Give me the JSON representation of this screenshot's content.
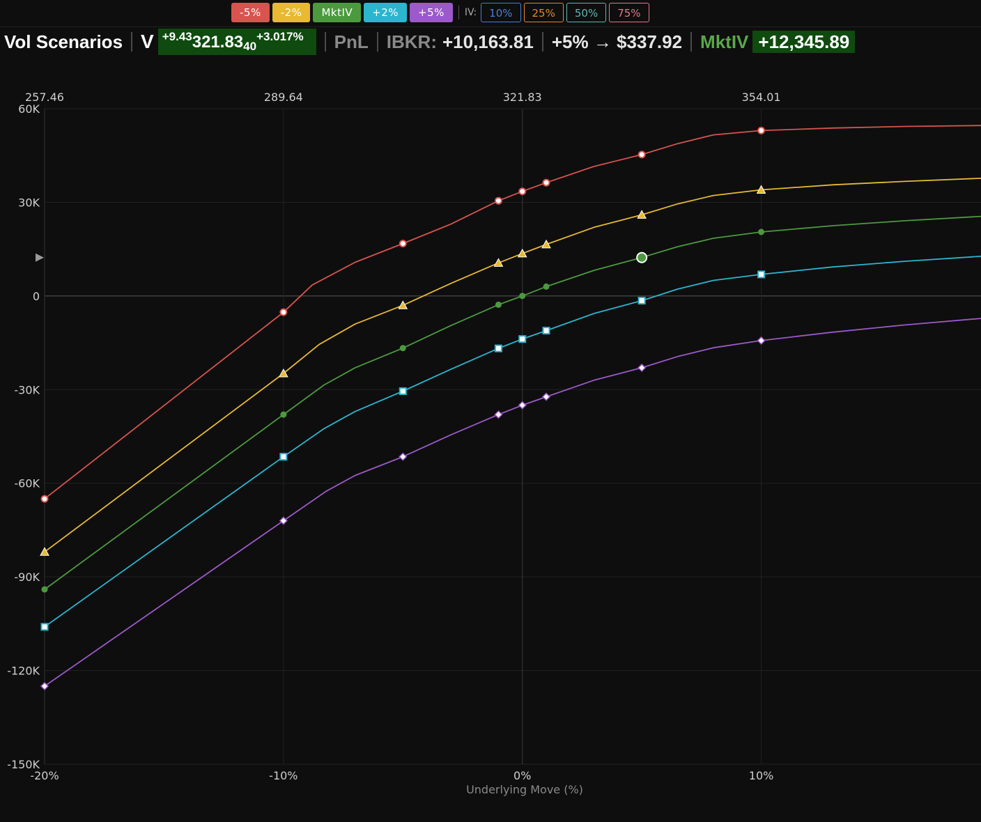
{
  "legend": {
    "buttons": [
      {
        "label": "-5%",
        "color": "#d9534f"
      },
      {
        "label": "-2%",
        "color": "#e8b931"
      },
      {
        "label": "MktIV",
        "color": "#4c9a3e"
      },
      {
        "label": "+2%",
        "color": "#2bb5cf"
      },
      {
        "label": "+5%",
        "color": "#9b59c9"
      }
    ],
    "iv_label": "IV:",
    "iv_buttons": [
      {
        "label": "10%",
        "color": "#4a7fd4"
      },
      {
        "label": "25%",
        "color": "#e08a2e"
      },
      {
        "label": "50%",
        "color": "#5fb8b0"
      },
      {
        "label": "75%",
        "color": "#e07a8a"
      }
    ]
  },
  "header": {
    "title": "Vol Scenarios",
    "ticker": "V",
    "change_abs": "+9.43",
    "price_main": "321.83",
    "price_sub": "40",
    "change_pct": "+3.017%",
    "pnl_label": "PnL",
    "ibkr_label": "IBKR:",
    "ibkr_value": "+10,163.81",
    "scenario_text": "+5% → $337.92",
    "mktiv_label": "MktIV",
    "mktiv_value": "+12,345.89"
  },
  "chart_data": {
    "type": "line",
    "xlabel": "Underlying Move (%)",
    "xlim": [
      -20,
      19.2
    ],
    "ylim": [
      -150000,
      60000
    ],
    "x_ticks": [
      -20,
      -10,
      0,
      10
    ],
    "x_tick_labels": [
      "-20%",
      "-10%",
      "0%",
      "10%"
    ],
    "top_ticks": [
      -20,
      -10,
      0,
      10
    ],
    "top_tick_labels": [
      "257.46",
      "289.64",
      "321.83",
      "354.01"
    ],
    "y_ticks": [
      60000,
      30000,
      0,
      -30000,
      -60000,
      -90000,
      -120000,
      -150000
    ],
    "y_tick_labels": [
      "60K",
      "30K",
      "0",
      "-30K",
      "-60K",
      "-90K",
      "-120K",
      "-150K"
    ],
    "grid": true,
    "current_marker": {
      "x": 5,
      "y": 12300,
      "series": "MktIV"
    },
    "series": [
      {
        "name": "-5%",
        "color": "#d9534f",
        "marker": "circle",
        "points": [
          [
            -20,
            -65000
          ],
          [
            -10,
            -5200
          ],
          [
            -5,
            16800
          ],
          [
            -1,
            30500
          ],
          [
            0,
            33500
          ],
          [
            1,
            36300
          ],
          [
            5,
            45300
          ],
          [
            10,
            53000
          ]
        ],
        "curve": [
          [
            -20,
            -65000
          ],
          [
            -10,
            -5200
          ],
          [
            -8.8,
            3500
          ],
          [
            -7,
            10800
          ],
          [
            -5,
            16800
          ],
          [
            -3,
            23000
          ],
          [
            -1,
            30500
          ],
          [
            0,
            33500
          ],
          [
            1,
            36300
          ],
          [
            3,
            41500
          ],
          [
            5,
            45300
          ],
          [
            6.5,
            48800
          ],
          [
            8,
            51600
          ],
          [
            10,
            53000
          ],
          [
            13,
            53800
          ],
          [
            16,
            54300
          ],
          [
            19.2,
            54600
          ]
        ]
      },
      {
        "name": "-2%",
        "color": "#e8b931",
        "marker": "triangle",
        "points": [
          [
            -20,
            -82000
          ],
          [
            -10,
            -24800
          ],
          [
            -5,
            -3000
          ],
          [
            -1,
            10600
          ],
          [
            0,
            13600
          ],
          [
            1,
            16500
          ],
          [
            5,
            26000
          ],
          [
            10,
            34000
          ]
        ],
        "curve": [
          [
            -20,
            -82000
          ],
          [
            -10,
            -24800
          ],
          [
            -8.5,
            -15500
          ],
          [
            -7,
            -9000
          ],
          [
            -5,
            -3000
          ],
          [
            -3,
            4000
          ],
          [
            -1,
            10600
          ],
          [
            0,
            13600
          ],
          [
            1,
            16500
          ],
          [
            3,
            22000
          ],
          [
            5,
            26000
          ],
          [
            6.5,
            29500
          ],
          [
            8,
            32200
          ],
          [
            10,
            34000
          ],
          [
            13,
            35600
          ],
          [
            16,
            36700
          ],
          [
            19.2,
            37700
          ]
        ]
      },
      {
        "name": "MktIV",
        "color": "#4c9a3e",
        "marker": "dot",
        "points": [
          [
            -20,
            -94000
          ],
          [
            -10,
            -38000
          ],
          [
            -5,
            -16700
          ],
          [
            -1,
            -2800
          ],
          [
            0,
            0
          ],
          [
            1,
            3000
          ],
          [
            5,
            12300
          ],
          [
            10,
            20500
          ]
        ],
        "curve": [
          [
            -20,
            -94000
          ],
          [
            -10,
            -38000
          ],
          [
            -8.3,
            -28500
          ],
          [
            -7,
            -23000
          ],
          [
            -5,
            -16700
          ],
          [
            -3,
            -9500
          ],
          [
            -1,
            -2800
          ],
          [
            0,
            0
          ],
          [
            1,
            3000
          ],
          [
            3,
            8200
          ],
          [
            5,
            12300
          ],
          [
            6.5,
            15800
          ],
          [
            8,
            18500
          ],
          [
            10,
            20500
          ],
          [
            13,
            22500
          ],
          [
            16,
            24100
          ],
          [
            19.2,
            25500
          ]
        ]
      },
      {
        "name": "+2%",
        "color": "#2bb5cf",
        "marker": "square",
        "points": [
          [
            -20,
            -106000
          ],
          [
            -10,
            -51500
          ],
          [
            -5,
            -30500
          ],
          [
            -1,
            -16800
          ],
          [
            0,
            -13800
          ],
          [
            1,
            -11100
          ],
          [
            5,
            -1500
          ],
          [
            10,
            6900
          ]
        ],
        "curve": [
          [
            -20,
            -106000
          ],
          [
            -10,
            -51500
          ],
          [
            -8.3,
            -42500
          ],
          [
            -7,
            -37000
          ],
          [
            -5,
            -30500
          ],
          [
            -3,
            -23500
          ],
          [
            -1,
            -16800
          ],
          [
            0,
            -13800
          ],
          [
            1,
            -11100
          ],
          [
            3,
            -5600
          ],
          [
            5,
            -1500
          ],
          [
            6.5,
            2200
          ],
          [
            8,
            5000
          ],
          [
            10,
            6900
          ],
          [
            13,
            9300
          ],
          [
            16,
            11100
          ],
          [
            19.2,
            12700
          ]
        ]
      },
      {
        "name": "+5%",
        "color": "#9b59c9",
        "marker": "diamond",
        "points": [
          [
            -20,
            -125000
          ],
          [
            -10,
            -72000
          ],
          [
            -5,
            -51500
          ],
          [
            -1,
            -38000
          ],
          [
            0,
            -35000
          ],
          [
            1,
            -32300
          ],
          [
            5,
            -23000
          ],
          [
            10,
            -14300
          ]
        ],
        "curve": [
          [
            -20,
            -125000
          ],
          [
            -10,
            -72000
          ],
          [
            -8.2,
            -62500
          ],
          [
            -7,
            -57500
          ],
          [
            -5,
            -51500
          ],
          [
            -3,
            -44500
          ],
          [
            -1,
            -38000
          ],
          [
            0,
            -35000
          ],
          [
            1,
            -32300
          ],
          [
            3,
            -27000
          ],
          [
            5,
            -23000
          ],
          [
            6.5,
            -19400
          ],
          [
            8,
            -16600
          ],
          [
            10,
            -14300
          ],
          [
            13,
            -11600
          ],
          [
            16,
            -9300
          ],
          [
            19.2,
            -7200
          ]
        ]
      }
    ]
  }
}
